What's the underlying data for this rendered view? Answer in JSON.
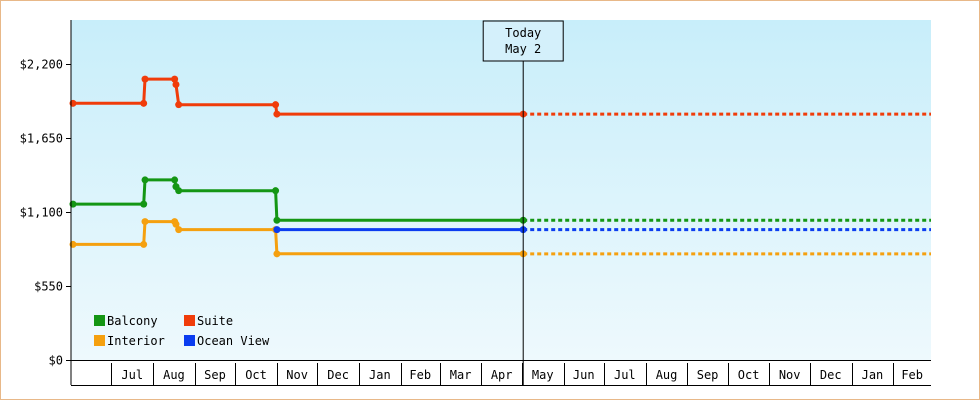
{
  "chart_data": {
    "type": "line",
    "step": true,
    "x_axis": {
      "tick_labels": [
        "Jul",
        "Aug",
        "Sep",
        "Oct",
        "Nov",
        "Dec",
        "Jan",
        "Feb",
        "Mar",
        "Apr",
        "May",
        "Jun",
        "Jul",
        "Aug",
        "Sep",
        "Oct",
        "Nov",
        "Dec",
        "Jan",
        "Feb"
      ],
      "range": [
        "2023-06-01",
        "2025-03-01"
      ]
    },
    "y_axis": {
      "range": [
        0,
        2530
      ],
      "tick_values": [
        0,
        550,
        1100,
        1650,
        2200
      ],
      "tick_labels": [
        "$0",
        "$550",
        "$1,100",
        "$1,650",
        "$2,200"
      ]
    },
    "grid": false,
    "today": {
      "line1": "Today",
      "line2": "May 2",
      "date": "2024-05-02"
    },
    "legend": {
      "placement": "bottom-left",
      "items": [
        {
          "label": "Balcony",
          "color": "#149614"
        },
        {
          "label": "Suite",
          "color": "#f03c0a"
        },
        {
          "label": "Interior",
          "color": "#f5a00f"
        },
        {
          "label": "Ocean View",
          "color": "#0a3cf0"
        }
      ]
    },
    "series": [
      {
        "name": "Balcony",
        "color": "#149614",
        "points": [
          [
            "2023-06-01",
            1160
          ],
          [
            "2023-07-25",
            1160
          ],
          [
            "2023-07-26",
            1340
          ],
          [
            "2023-08-17",
            1340
          ],
          [
            "2023-08-18",
            1290
          ],
          [
            "2023-08-20",
            1260
          ],
          [
            "2023-10-31",
            1260
          ],
          [
            "2023-11-01",
            1040
          ],
          [
            "2024-05-02",
            1040
          ]
        ],
        "projection_end": "2025-03-01"
      },
      {
        "name": "Suite",
        "color": "#f03c0a",
        "points": [
          [
            "2023-06-01",
            1910
          ],
          [
            "2023-07-25",
            1910
          ],
          [
            "2023-07-26",
            2090
          ],
          [
            "2023-08-17",
            2090
          ],
          [
            "2023-08-18",
            2050
          ],
          [
            "2023-08-20",
            1900
          ],
          [
            "2023-10-31",
            1900
          ],
          [
            "2023-11-01",
            1830
          ],
          [
            "2024-05-02",
            1830
          ]
        ],
        "projection_end": "2025-03-01"
      },
      {
        "name": "Interior",
        "color": "#f5a00f",
        "points": [
          [
            "2023-06-01",
            860
          ],
          [
            "2023-07-25",
            860
          ],
          [
            "2023-07-26",
            1030
          ],
          [
            "2023-08-17",
            1030
          ],
          [
            "2023-08-18",
            1010
          ],
          [
            "2023-08-20",
            970
          ],
          [
            "2023-10-31",
            970
          ],
          [
            "2023-11-01",
            790
          ],
          [
            "2024-05-02",
            790
          ]
        ],
        "projection_end": "2025-03-01"
      },
      {
        "name": "Ocean View",
        "color": "#0a3cf0",
        "points": [
          [
            "2023-11-01",
            970
          ],
          [
            "2024-05-02",
            970
          ]
        ],
        "projection_end": "2025-03-01"
      }
    ]
  }
}
